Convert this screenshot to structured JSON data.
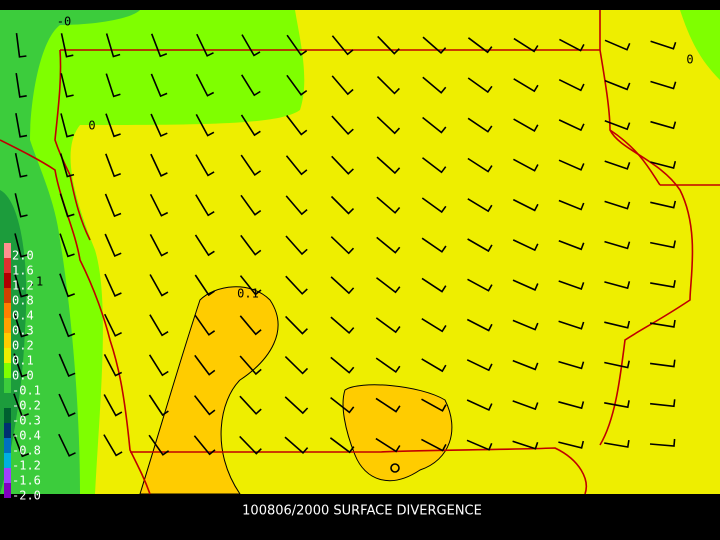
{
  "title": "100806/2000 SURFACE DIVERGENCE",
  "legend": {
    "labels": [
      "2.0",
      "1.6",
      "1.2",
      "0.8",
      "0.4",
      "0.3",
      "0.2",
      "0.1",
      "0.0",
      "-0.1",
      "-0.2",
      "-0.3",
      "-0.4",
      "-0.8",
      "-1.2",
      "-1.6",
      "-2.0"
    ],
    "colors": [
      "#ff9090",
      "#e03030",
      "#b00000",
      "#d04000",
      "#ff7f00",
      "#ffa000",
      "#ffcc00",
      "#eeee00",
      "#7fff00",
      "#3ccc3c",
      "#1c9c3c",
      "#006030",
      "#003070",
      "#0070c0",
      "#00b0e0",
      "#a040ff",
      "#8000c0"
    ]
  },
  "contour_labels": [
    "-0",
    "0",
    "0",
    ".1",
    "0.1",
    "0"
  ]
}
